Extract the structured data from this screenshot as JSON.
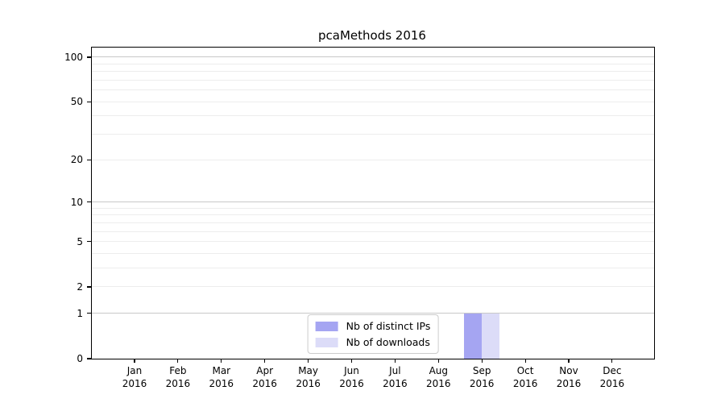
{
  "chart_data": {
    "type": "bar",
    "title": "pcaMethods 2016",
    "x_axis": {
      "months": [
        "Jan",
        "Feb",
        "Mar",
        "Apr",
        "May",
        "Jun",
        "Jul",
        "Aug",
        "Sep",
        "Oct",
        "Nov",
        "Dec"
      ],
      "year_label": "2016"
    },
    "series": [
      {
        "name": "Nb of distinct IPs",
        "color": "#a5a5f2",
        "values": [
          0,
          0,
          0,
          0,
          0,
          0,
          0,
          0,
          1,
          0,
          0,
          0
        ]
      },
      {
        "name": "Nb of downloads",
        "color": "#dcdcf8",
        "values": [
          0,
          0,
          0,
          0,
          0,
          0,
          0,
          0,
          1,
          0,
          0,
          0
        ]
      }
    ],
    "y_axis": {
      "scale": "log1p",
      "ylim": [
        0,
        116
      ],
      "tick_labels": [
        100,
        50,
        20,
        10,
        5,
        2,
        1,
        0
      ],
      "major_gridlines": [
        100,
        10,
        1
      ],
      "minor_gridlines": [
        2,
        3,
        4,
        5,
        6,
        7,
        8,
        9,
        20,
        30,
        40,
        50,
        60,
        70,
        80,
        90
      ]
    },
    "legend": {
      "position": "lower center",
      "entries": [
        "Nb of distinct IPs",
        "Nb of downloads"
      ]
    },
    "colors": {
      "background": "#ffffff",
      "axis": "#000000",
      "major_grid": "#c8c8c8",
      "minor_grid": "#ededed"
    }
  }
}
